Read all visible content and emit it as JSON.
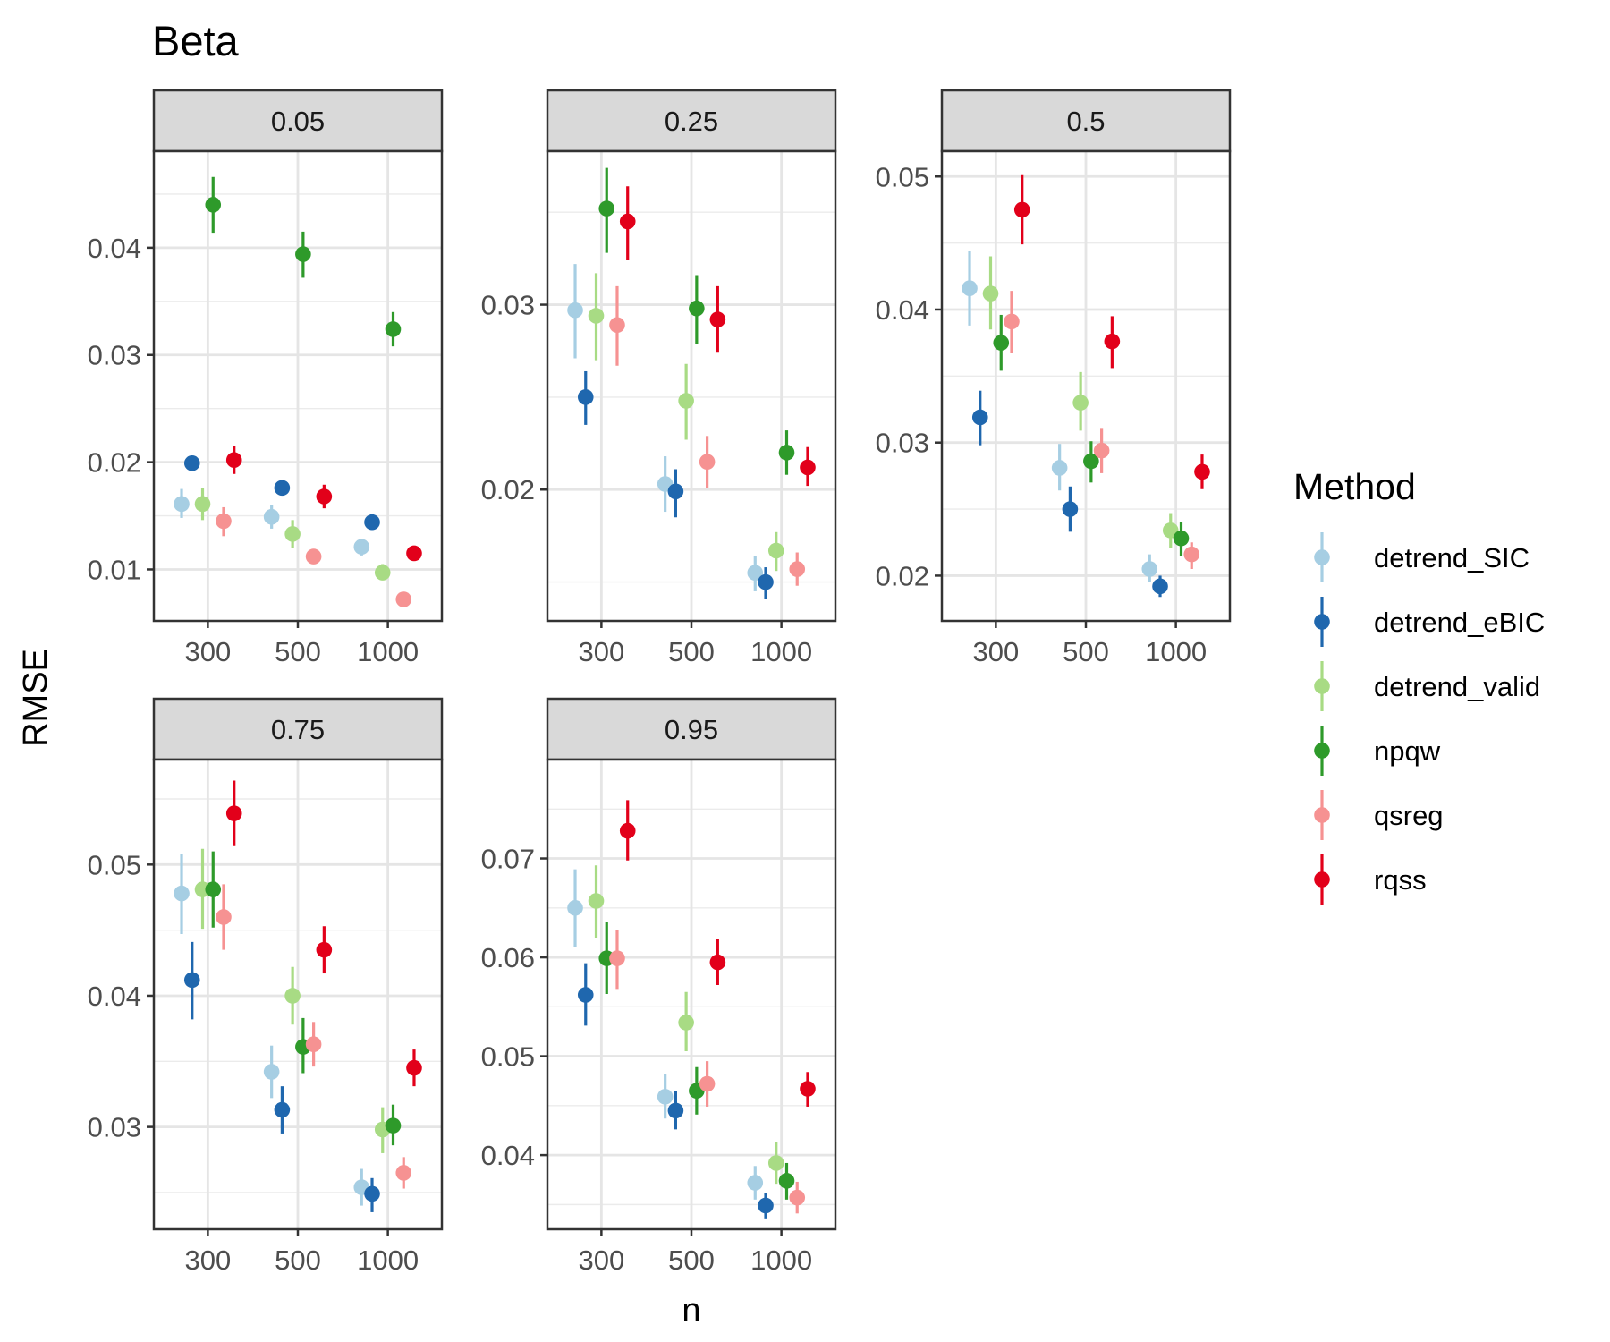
{
  "chart_data": {
    "type": "scatter",
    "title": "Beta",
    "xlabel": "n",
    "ylabel": "RMSE",
    "x_categories": [
      "300",
      "500",
      "1000"
    ],
    "legend": {
      "title": "Method",
      "position": "right"
    },
    "series": [
      {
        "name": "detrend_SIC",
        "color": "#A6CEE3"
      },
      {
        "name": "detrend_eBIC",
        "color": "#1F67AE"
      },
      {
        "name": "detrend_valid",
        "color": "#A8DB84"
      },
      {
        "name": "npqw",
        "color": "#2E9A2A"
      },
      {
        "name": "qsreg",
        "color": "#F69292"
      },
      {
        "name": "rqss",
        "color": "#E2001A"
      }
    ],
    "grid": true,
    "panels": [
      {
        "label": "0.05",
        "ylim": [
          0.0052,
          0.049
        ],
        "yticks": [
          0.01,
          0.02,
          0.03,
          0.04
        ],
        "yticklabels": [
          "0.01",
          "0.02",
          "0.03",
          "0.04"
        ],
        "points": {
          "detrend_SIC": [
            [
              0.0161,
              0.0148,
              0.0175
            ],
            [
              0.0149,
              0.0138,
              0.016
            ],
            [
              0.0121,
              0.0113,
              0.0128
            ]
          ],
          "detrend_eBIC": [
            [
              0.0199,
              0.0193,
              0.0205
            ],
            [
              0.0176,
              0.017,
              0.0182
            ],
            [
              0.0144,
              0.0138,
              0.015
            ]
          ],
          "detrend_valid": [
            [
              0.0161,
              0.0146,
              0.0176
            ],
            [
              0.0133,
              0.012,
              0.0146
            ],
            [
              0.0097,
              0.009,
              0.0105
            ]
          ],
          "npqw": [
            [
              0.044,
              0.0414,
              0.0466
            ],
            [
              0.0394,
              0.0372,
              0.0415
            ],
            [
              0.0324,
              0.0308,
              0.034
            ]
          ],
          "qsreg": [
            [
              0.0145,
              0.0131,
              0.0158
            ],
            [
              0.0112,
              0.0106,
              0.0118
            ],
            [
              0.0072,
              0.0066,
              0.0078
            ]
          ],
          "rqss": [
            [
              0.0202,
              0.0189,
              0.0215
            ],
            [
              0.0168,
              0.0157,
              0.0179
            ],
            [
              0.0115,
              0.0109,
              0.0121
            ]
          ]
        }
      },
      {
        "label": "0.25",
        "ylim": [
          0.0129,
          0.0383
        ],
        "yticks": [
          0.02,
          0.03
        ],
        "yticklabels": [
          "0.02",
          "0.03"
        ],
        "points": {
          "detrend_SIC": [
            [
              0.0297,
              0.0271,
              0.0322
            ],
            [
              0.0203,
              0.0188,
              0.0218
            ],
            [
              0.0155,
              0.0145,
              0.0164
            ]
          ],
          "detrend_eBIC": [
            [
              0.025,
              0.0235,
              0.0264
            ],
            [
              0.0199,
              0.0185,
              0.0211
            ],
            [
              0.015,
              0.0141,
              0.0158
            ]
          ],
          "detrend_valid": [
            [
              0.0294,
              0.027,
              0.0317
            ],
            [
              0.0248,
              0.0227,
              0.0268
            ],
            [
              0.0167,
              0.0156,
              0.0177
            ]
          ],
          "npqw": [
            [
              0.0352,
              0.0328,
              0.0374
            ],
            [
              0.0298,
              0.0279,
              0.0316
            ],
            [
              0.022,
              0.0208,
              0.0232
            ]
          ],
          "qsreg": [
            [
              0.0289,
              0.0267,
              0.031
            ],
            [
              0.0215,
              0.0201,
              0.0229
            ],
            [
              0.0157,
              0.0148,
              0.0166
            ]
          ],
          "rqss": [
            [
              0.0345,
              0.0324,
              0.0364
            ],
            [
              0.0292,
              0.0274,
              0.031
            ],
            [
              0.0212,
              0.0202,
              0.0223
            ]
          ]
        }
      },
      {
        "label": "0.5",
        "ylim": [
          0.0166,
          0.0519
        ],
        "yticks": [
          0.02,
          0.03,
          0.04,
          0.05
        ],
        "yticklabels": [
          "0.02",
          "0.03",
          "0.04",
          "0.05"
        ],
        "points": {
          "detrend_SIC": [
            [
              0.0416,
              0.0388,
              0.0444
            ],
            [
              0.0281,
              0.0264,
              0.0299
            ],
            [
              0.0205,
              0.0195,
              0.0216
            ]
          ],
          "detrend_eBIC": [
            [
              0.0319,
              0.0298,
              0.0339
            ],
            [
              0.025,
              0.0233,
              0.0267
            ],
            [
              0.0192,
              0.0184,
              0.02
            ]
          ],
          "detrend_valid": [
            [
              0.0412,
              0.0385,
              0.044
            ],
            [
              0.033,
              0.0309,
              0.0353
            ],
            [
              0.0234,
              0.0221,
              0.0247
            ]
          ],
          "npqw": [
            [
              0.0375,
              0.0354,
              0.0396
            ],
            [
              0.0286,
              0.027,
              0.0301
            ],
            [
              0.0228,
              0.0215,
              0.024
            ]
          ],
          "qsreg": [
            [
              0.0391,
              0.0367,
              0.0414
            ],
            [
              0.0294,
              0.0277,
              0.0311
            ],
            [
              0.0216,
              0.0205,
              0.0225
            ]
          ],
          "rqss": [
            [
              0.0475,
              0.0449,
              0.0501
            ],
            [
              0.0376,
              0.0356,
              0.0395
            ],
            [
              0.0278,
              0.0265,
              0.0291
            ]
          ]
        }
      },
      {
        "label": "0.75",
        "ylim": [
          0.0222,
          0.058
        ],
        "yticks": [
          0.03,
          0.04,
          0.05
        ],
        "yticklabels": [
          "0.03",
          "0.04",
          "0.05"
        ],
        "points": {
          "detrend_SIC": [
            [
              0.0478,
              0.0447,
              0.0508
            ],
            [
              0.0342,
              0.0322,
              0.0362
            ],
            [
              0.0254,
              0.024,
              0.0268
            ]
          ],
          "detrend_eBIC": [
            [
              0.0412,
              0.0382,
              0.0441
            ],
            [
              0.0313,
              0.0295,
              0.0331
            ],
            [
              0.0249,
              0.0235,
              0.0261
            ]
          ],
          "detrend_valid": [
            [
              0.0481,
              0.0451,
              0.0512
            ],
            [
              0.04,
              0.0378,
              0.0422
            ],
            [
              0.0298,
              0.028,
              0.0315
            ]
          ],
          "npqw": [
            [
              0.0481,
              0.0452,
              0.051
            ],
            [
              0.0361,
              0.0341,
              0.0383
            ],
            [
              0.0301,
              0.0286,
              0.0317
            ]
          ],
          "qsreg": [
            [
              0.046,
              0.0435,
              0.0485
            ],
            [
              0.0363,
              0.0346,
              0.038
            ],
            [
              0.0265,
              0.0253,
              0.0277
            ]
          ],
          "rqss": [
            [
              0.0539,
              0.0514,
              0.0564
            ],
            [
              0.0435,
              0.0417,
              0.0453
            ],
            [
              0.0345,
              0.0331,
              0.0359
            ]
          ]
        }
      },
      {
        "label": "0.95",
        "ylim": [
          0.0325,
          0.08
        ],
        "yticks": [
          0.04,
          0.05,
          0.06,
          0.07
        ],
        "yticklabels": [
          "0.04",
          "0.05",
          "0.06",
          "0.07"
        ],
        "points": {
          "detrend_SIC": [
            [
              0.065,
              0.061,
              0.0689
            ],
            [
              0.0459,
              0.0437,
              0.0482
            ],
            [
              0.0372,
              0.0355,
              0.0389
            ]
          ],
          "detrend_eBIC": [
            [
              0.0562,
              0.0531,
              0.0594
            ],
            [
              0.0445,
              0.0426,
              0.0465
            ],
            [
              0.0349,
              0.0336,
              0.0362
            ]
          ],
          "detrend_valid": [
            [
              0.0657,
              0.062,
              0.0693
            ],
            [
              0.0534,
              0.0505,
              0.0565
            ],
            [
              0.0392,
              0.0371,
              0.0413
            ]
          ],
          "npqw": [
            [
              0.0599,
              0.0563,
              0.0636
            ],
            [
              0.0465,
              0.0441,
              0.0489
            ],
            [
              0.0374,
              0.0355,
              0.0392
            ]
          ],
          "qsreg": [
            [
              0.0599,
              0.0568,
              0.0628
            ],
            [
              0.0472,
              0.0449,
              0.0495
            ],
            [
              0.0357,
              0.0341,
              0.0373
            ]
          ],
          "rqss": [
            [
              0.0728,
              0.0698,
              0.0759
            ],
            [
              0.0595,
              0.0572,
              0.0619
            ],
            [
              0.0467,
              0.0449,
              0.0484
            ]
          ]
        }
      }
    ]
  }
}
